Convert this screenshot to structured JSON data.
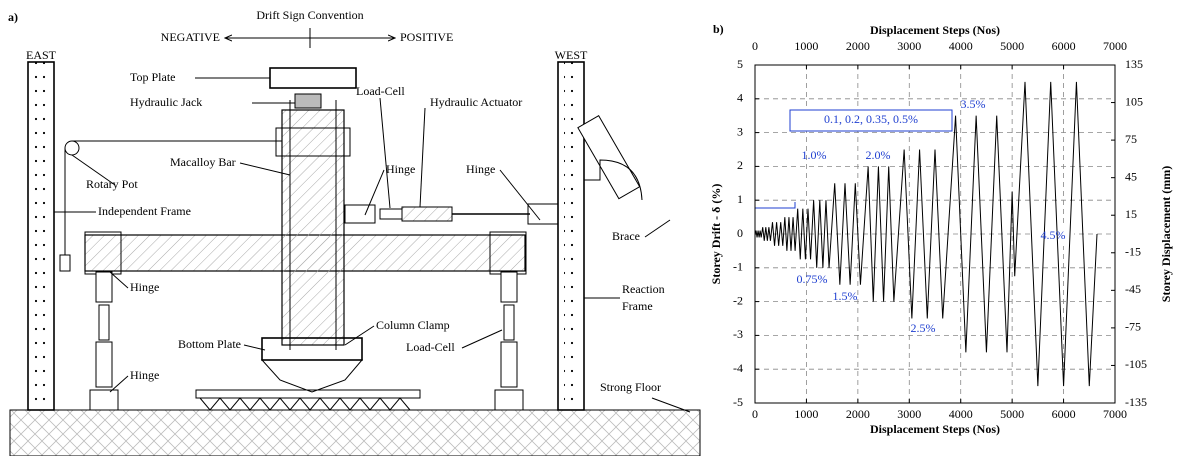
{
  "panel_a": {
    "label": "a)",
    "title": "Drift Sign Convention",
    "negative": "NEGATIVE",
    "positive": "POSITIVE",
    "callouts": [
      "EAST",
      "WEST",
      "Top Plate",
      "Hydraulic Jack",
      "Load-Cell",
      "Hydraulic Actuator",
      "Hinge",
      "Hinge",
      "Rotary Pot",
      "Macalloy Bar",
      "Independent Frame",
      "Brace",
      "Reaction",
      "Frame",
      "Hinge",
      "Hinge",
      "Column Clamp",
      "Bottom Plate",
      "Load-Cell",
      "Strong Floor"
    ]
  },
  "chart_data": {
    "type": "line",
    "panel_label": "b)",
    "xlabel": "Displacement Steps (Nos)",
    "x2label": "Displacement Steps (Nos)",
    "ylabel": "Storey Drift - δ (%)",
    "y2label": "Storey Displacement (mm)",
    "xlim": [
      0,
      7000
    ],
    "xticks": [
      0,
      1000,
      2000,
      3000,
      4000,
      5000,
      6000,
      7000
    ],
    "ylim": [
      -5,
      5
    ],
    "yticks": [
      -5,
      -4,
      -3,
      -2,
      -1,
      0,
      1,
      2,
      3,
      4,
      5
    ],
    "y2lim": [
      -135,
      135
    ],
    "y2ticks": [
      -135,
      -105,
      -75,
      -45,
      -15,
      15,
      45,
      75,
      105,
      135
    ],
    "grid": true,
    "color": "#000000",
    "x": [
      0,
      20,
      40,
      60,
      80,
      100,
      120,
      150,
      180,
      210,
      240,
      270,
      300,
      340,
      380,
      420,
      460,
      500,
      540,
      580,
      620,
      660,
      700,
      740,
      780,
      830,
      880,
      930,
      980,
      1030,
      1080,
      1140,
      1200,
      1260,
      1320,
      1380,
      1440,
      1550,
      1650,
      1750,
      1850,
      1950,
      2050,
      2200,
      2300,
      2400,
      2500,
      2600,
      2700,
      2900,
      3050,
      3200,
      3350,
      3500,
      3650,
      3900,
      4100,
      4300,
      4500,
      4700,
      4900,
      5000,
      5050,
      5250,
      5500,
      5750,
      6000,
      6250,
      6500,
      6650
    ],
    "values": [
      0,
      0.1,
      -0.1,
      0.1,
      -0.1,
      0.1,
      -0.1,
      0.2,
      -0.2,
      0.2,
      -0.2,
      0.2,
      -0.2,
      0.35,
      -0.35,
      0.35,
      -0.35,
      0.35,
      -0.35,
      0.5,
      -0.5,
      0.5,
      -0.5,
      0.5,
      -0.5,
      0.75,
      -0.75,
      0.75,
      -0.75,
      0.75,
      -0.75,
      1.0,
      -1.0,
      1.0,
      -1.0,
      1.0,
      -1.0,
      1.5,
      -1.5,
      1.5,
      -1.5,
      1.5,
      -1.5,
      2.0,
      -2.0,
      2.0,
      -2.0,
      2.0,
      -2.0,
      2.5,
      -2.5,
      2.5,
      -2.5,
      2.5,
      -2.5,
      3.5,
      -3.5,
      3.5,
      -3.5,
      3.5,
      -3.5,
      1.25,
      -1.25,
      4.5,
      -4.5,
      4.5,
      -4.5,
      4.5,
      -4.5,
      0
    ],
    "annotations": [
      "0.1, 0.2, 0.35, 0.5%",
      "1.0%",
      "0.75%",
      "1.5%",
      "2.0%",
      "2.5%",
      "3.5%",
      "4.5%"
    ]
  }
}
